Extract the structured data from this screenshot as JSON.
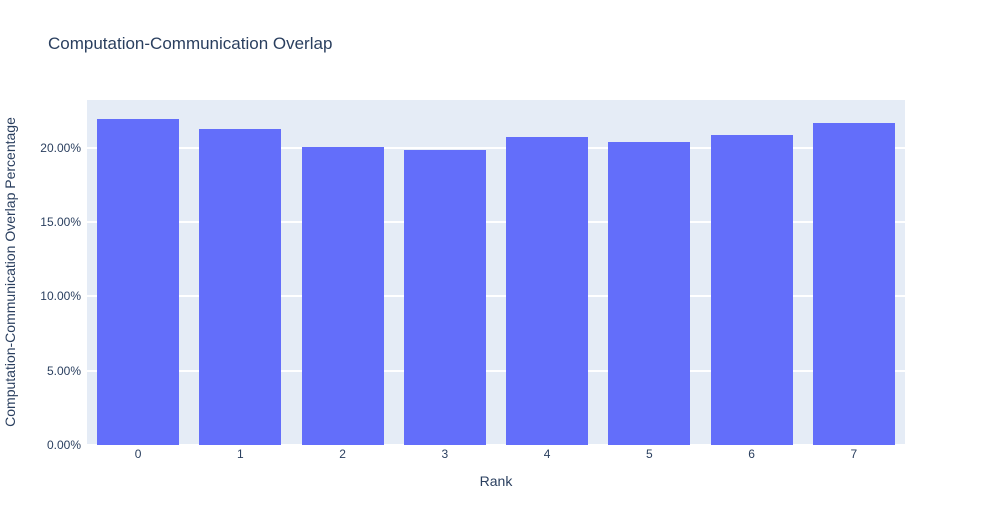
{
  "chart_data": {
    "type": "bar",
    "title": "Computation-Communication Overlap",
    "xlabel": "Rank",
    "ylabel": "Computation-Communication Overlap Percentage",
    "categories": [
      "0",
      "1",
      "2",
      "3",
      "4",
      "5",
      "6",
      "7"
    ],
    "values": [
      21.93,
      21.25,
      20.02,
      19.86,
      20.69,
      20.41,
      20.82,
      21.66
    ],
    "ylim": [
      0,
      23.2
    ],
    "yticks": [
      0,
      5,
      10,
      15,
      20
    ],
    "ytick_labels": [
      "0.00%",
      "5.00%",
      "10.00%",
      "15.00%",
      "20.00%"
    ],
    "grid": true,
    "legend": "none",
    "bar_color": "#636efa",
    "plot_bg": "#e5ecf6",
    "grid_color": "#ffffff",
    "text_color": "#2a3f5f",
    "bargap": 0.2
  }
}
